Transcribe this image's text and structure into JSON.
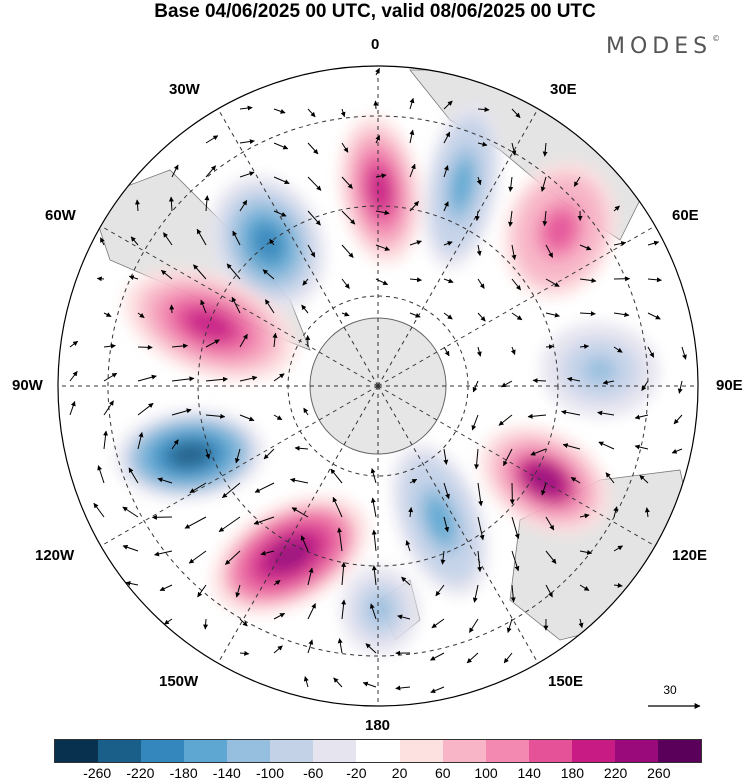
{
  "title": "Base 04/06/2025 00 UTC, valid 08/06/2025 00 UTC",
  "logo": "MODES",
  "logo_mark": "©",
  "longitudes": {
    "top": "0",
    "bottom": "180",
    "left": "90W",
    "right": "90E",
    "nw1": "30W",
    "nw2": "60W",
    "ne1": "30E",
    "ne2": "60E",
    "sw1": "120W",
    "sw2": "150W",
    "se1": "120E",
    "se2": "150E"
  },
  "reference_vector": "30",
  "colorbar": {
    "colors": [
      "#08304f",
      "#1a5f8a",
      "#3487bd",
      "#5ea7d2",
      "#96bede",
      "#c4d2e8",
      "#e5e4ef",
      "#ffffff",
      "#fde0e0",
      "#f8b5c7",
      "#f389b0",
      "#e55298",
      "#c91b84",
      "#9b0a7a",
      "#5a005a"
    ],
    "ticks": [
      "-260",
      "-220",
      "-180",
      "-140",
      "-100",
      "-60",
      "-20",
      "20",
      "60",
      "100",
      "140",
      "180",
      "220",
      "260"
    ]
  },
  "anomaly_centers": [
    {
      "sign": "neg",
      "amplitude": 200
    },
    {
      "sign": "pos",
      "amplitude": 180
    },
    {
      "sign": "neg",
      "amplitude": 150
    },
    {
      "sign": "pos",
      "amplitude": 140
    },
    {
      "sign": "neg",
      "amplitude": 110
    },
    {
      "sign": "pos",
      "amplitude": 220
    },
    {
      "sign": "neg",
      "amplitude": 140
    },
    {
      "sign": "pos",
      "amplitude": 230
    },
    {
      "sign": "neg",
      "amplitude": 230
    },
    {
      "sign": "pos",
      "amplitude": 190
    },
    {
      "sign": "neg",
      "amplitude": 110
    }
  ]
}
